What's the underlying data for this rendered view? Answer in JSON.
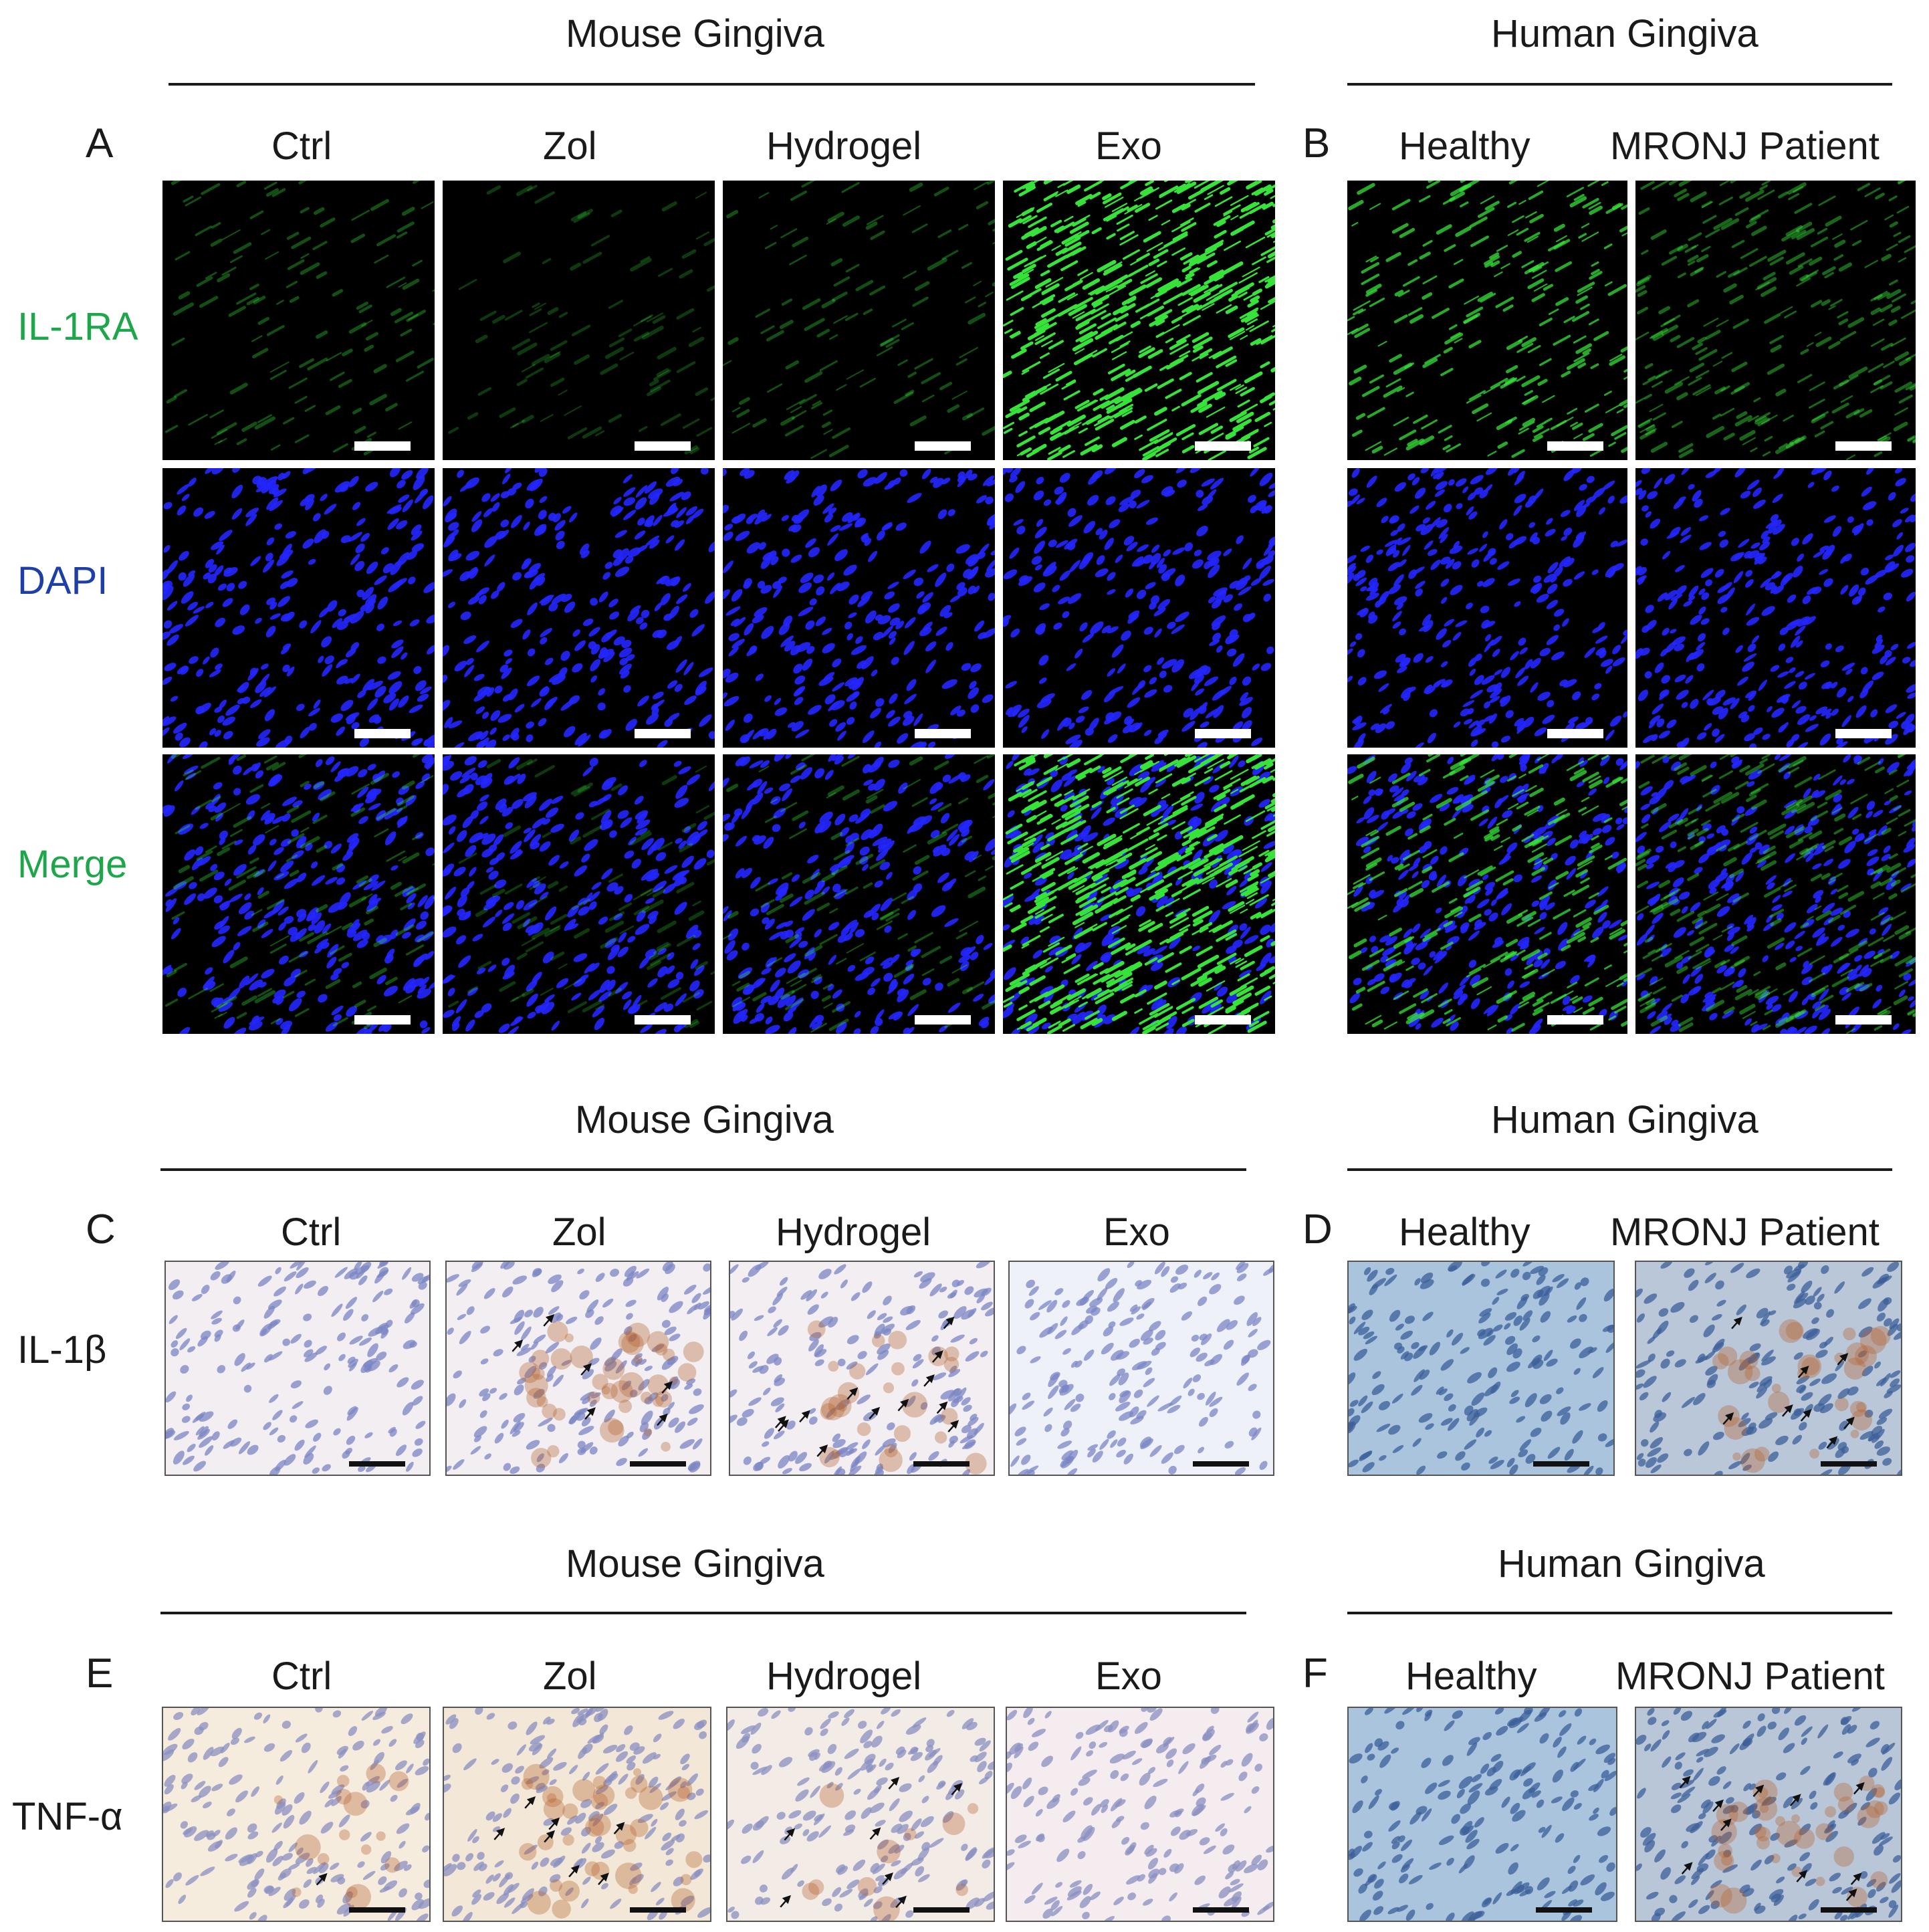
{
  "section_A": {
    "header": "Mouse Gingiva",
    "letter": "A",
    "columns": [
      "Ctrl",
      "Zol",
      "Hydrogel",
      "Exo"
    ],
    "rows": [
      "IL-1RA",
      "DAPI",
      "Merge"
    ]
  },
  "section_B": {
    "header": "Human Gingiva",
    "letter": "B",
    "columns": [
      "Healthy",
      "MRONJ Patient"
    ]
  },
  "section_C": {
    "header": "Mouse Gingiva",
    "letter": "C",
    "columns": [
      "Ctrl",
      "Zol",
      "Hydrogel",
      "Exo"
    ],
    "row": "IL-1β"
  },
  "section_D": {
    "header": "Human Gingiva",
    "letter": "D",
    "columns": [
      "Healthy",
      "MRONJ Patient"
    ]
  },
  "section_E": {
    "header": "Mouse Gingiva",
    "letter": "E",
    "columns": [
      "Ctrl",
      "Zol",
      "Hydrogel",
      "Exo"
    ],
    "row": "TNF-α"
  },
  "section_F": {
    "header": "Human Gingiva",
    "letter": "F",
    "columns": [
      "Healthy",
      "MRONJ Patient"
    ]
  },
  "colors": {
    "il1ra_label": "#1ea64a",
    "dapi_label": "#1f3fa8",
    "merge_label": "#1ea64a",
    "fluor_green": "#37e23a",
    "fluor_blue": "#2326ff",
    "ihc_mouse_bg": "#f2eef2",
    "ihc_human_bg": "#a9c4dc",
    "dab_brown": "#b5622e"
  }
}
